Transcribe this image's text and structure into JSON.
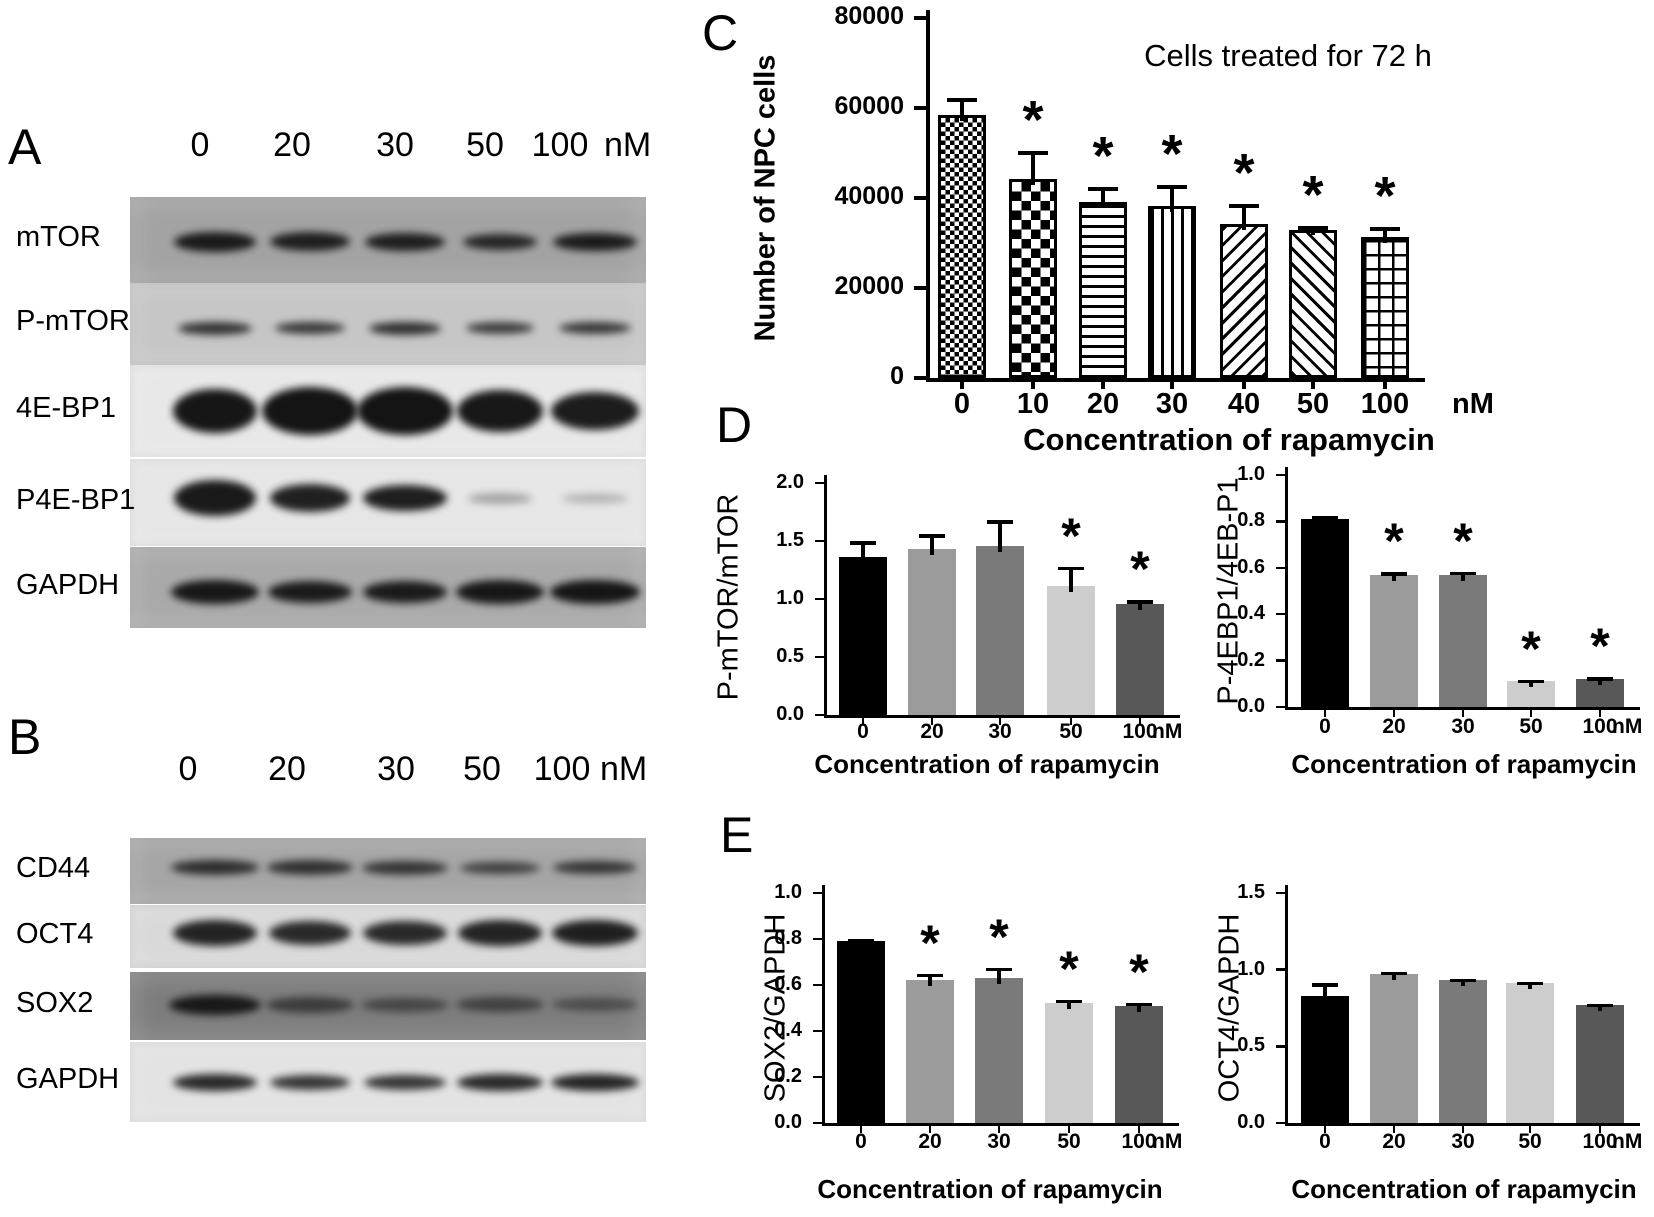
{
  "panels": {
    "A": {
      "label": "A",
      "lane_headers": [
        "0",
        "20",
        "30",
        "50",
        "100"
      ],
      "unit": "nM",
      "rows": [
        {
          "label": "mTOR",
          "strip_color": "#a3a3a3",
          "bands": [
            [
              82,
              20,
              0.93
            ],
            [
              80,
              19,
              0.9
            ],
            [
              80,
              18,
              0.9
            ],
            [
              74,
              16,
              0.85
            ],
            [
              84,
              18,
              0.92
            ]
          ]
        },
        {
          "label": "P-mTOR",
          "strip_color": "#c6c6c6",
          "bands": [
            [
              74,
              13,
              0.8
            ],
            [
              70,
              12,
              0.78
            ],
            [
              72,
              13,
              0.82
            ],
            [
              68,
              12,
              0.75
            ],
            [
              72,
              12,
              0.78
            ]
          ]
        },
        {
          "label": "4E-BP1",
          "strip_color": "#e8e8e8",
          "bands": [
            [
              84,
              44,
              0.97
            ],
            [
              96,
              48,
              0.98
            ],
            [
              96,
              48,
              0.98
            ],
            [
              86,
              42,
              0.96
            ],
            [
              88,
              38,
              0.94
            ]
          ]
        },
        {
          "label": "P4E-BP1",
          "strip_color": "#e6e6e6",
          "bands": [
            [
              82,
              36,
              0.95
            ],
            [
              80,
              28,
              0.92
            ],
            [
              84,
              26,
              0.93
            ],
            [
              64,
              11,
              0.3
            ],
            [
              66,
              9,
              0.25
            ]
          ]
        },
        {
          "label": "GAPDH",
          "strip_color": "#a9a9a9",
          "bands": [
            [
              88,
              24,
              0.95
            ],
            [
              84,
              22,
              0.93
            ],
            [
              84,
              22,
              0.93
            ],
            [
              88,
              24,
              0.95
            ],
            [
              90,
              24,
              0.96
            ]
          ]
        }
      ]
    },
    "B": {
      "label": "B",
      "lane_headers": [
        "0",
        "20",
        "30",
        "50",
        "100"
      ],
      "unit": "nM",
      "rows": [
        {
          "label": "CD44",
          "strip_color": "#a5a5a5",
          "bands": [
            [
              88,
              15,
              0.8
            ],
            [
              86,
              15,
              0.78
            ],
            [
              86,
              14,
              0.75
            ],
            [
              80,
              12,
              0.68
            ],
            [
              84,
              13,
              0.75
            ]
          ]
        },
        {
          "label": "OCT4",
          "strip_color": "#d9d9d9",
          "bands": [
            [
              84,
              26,
              0.9
            ],
            [
              82,
              24,
              0.87
            ],
            [
              84,
              24,
              0.87
            ],
            [
              84,
              26,
              0.9
            ],
            [
              86,
              26,
              0.92
            ]
          ]
        },
        {
          "label": "SOX2",
          "strip_color": "#7d7d7d",
          "bands": [
            [
              92,
              20,
              0.92
            ],
            [
              88,
              16,
              0.6
            ],
            [
              88,
              14,
              0.5
            ],
            [
              88,
              15,
              0.55
            ],
            [
              86,
              13,
              0.45
            ]
          ]
        },
        {
          "label": "GAPDH",
          "strip_color": "#e3e3e3",
          "bands": [
            [
              84,
              17,
              0.88
            ],
            [
              80,
              15,
              0.82
            ],
            [
              82,
              15,
              0.82
            ],
            [
              86,
              17,
              0.88
            ],
            [
              88,
              17,
              0.9
            ]
          ]
        }
      ]
    },
    "C": {
      "label": "C"
    },
    "D": {
      "label": "D"
    },
    "E": {
      "label": "E"
    }
  },
  "chart_data": [
    {
      "id": "C",
      "type": "bar",
      "title": "Cells treated for 72 h",
      "ylabel": "Number of NPC cells",
      "xlabel": "Concentration of rapamycin",
      "unit": "nM",
      "categories": [
        "0",
        "10",
        "20",
        "30",
        "40",
        "50",
        "100"
      ],
      "values": [
        58500,
        44300,
        39200,
        38300,
        34300,
        33000,
        31300
      ],
      "errors": [
        3800,
        6200,
        3200,
        4700,
        4300,
        700,
        2300
      ],
      "sig": [
        "",
        "*",
        "*",
        "*",
        "*",
        "*",
        "*"
      ],
      "ylim": [
        0,
        80000
      ],
      "yticks": [
        [
          0,
          "0"
        ],
        [
          20000,
          "20000"
        ],
        [
          40000,
          "40000"
        ],
        [
          60000,
          "60000"
        ],
        [
          80000,
          "80000"
        ]
      ],
      "patterns": [
        "checker-fine",
        "checker-coarse",
        "hlines",
        "vlines",
        "diag-up",
        "diag-down",
        "grid"
      ],
      "legend": "none"
    },
    {
      "id": "D1",
      "type": "bar",
      "ylabel": "P-mTOR/mTOR",
      "xlabel": "Concentration of rapamycin",
      "unit": "nM",
      "categories": [
        "0",
        "20",
        "30",
        "50",
        "100"
      ],
      "values": [
        1.36,
        1.43,
        1.46,
        1.11,
        0.96
      ],
      "errors": [
        0.14,
        0.13,
        0.22,
        0.17,
        0.03
      ],
      "sig": [
        "",
        "",
        "",
        "*",
        "*"
      ],
      "ylim": [
        0,
        2.0
      ],
      "yticks": [
        [
          0,
          "0.0"
        ],
        [
          0.5,
          "0.5"
        ],
        [
          1.0,
          "1.0"
        ],
        [
          1.5,
          "1.5"
        ],
        [
          2.0,
          "2.0"
        ]
      ],
      "colors": [
        "#000000",
        "#9b9b9b",
        "#7a7a7a",
        "#cdcdcd",
        "#585858"
      ]
    },
    {
      "id": "D2",
      "type": "bar",
      "ylabel": "P-4EBP1/4EB-P1",
      "xlabel": "Concentration of rapamycin",
      "unit": "nM",
      "categories": [
        "0",
        "20",
        "30",
        "50",
        "100"
      ],
      "values": [
        0.81,
        0.57,
        0.57,
        0.11,
        0.12
      ],
      "errors": [
        0.015,
        0.01,
        0.012,
        0.008,
        0.008
      ],
      "sig": [
        "",
        "*",
        "*",
        "*",
        "*"
      ],
      "ylim": [
        0,
        1.0
      ],
      "yticks": [
        [
          0,
          "0.0"
        ],
        [
          0.2,
          "0.2"
        ],
        [
          0.4,
          "0.4"
        ],
        [
          0.6,
          "0.6"
        ],
        [
          0.8,
          "0.8"
        ],
        [
          1.0,
          "1.0"
        ]
      ],
      "colors": [
        "#000000",
        "#9b9b9b",
        "#7a7a7a",
        "#cdcdcd",
        "#585858"
      ]
    },
    {
      "id": "E1",
      "type": "bar",
      "ylabel": "SOX2/GAPDH",
      "xlabel": "Concentration of rapamycin",
      "unit": "nM",
      "categories": [
        "0",
        "20",
        "30",
        "50",
        "100"
      ],
      "values": [
        0.79,
        0.62,
        0.63,
        0.52,
        0.51
      ],
      "errors": [
        0.012,
        0.028,
        0.045,
        0.015,
        0.012
      ],
      "sig": [
        "",
        "*",
        "*",
        "*",
        "*"
      ],
      "ylim": [
        0,
        1.0
      ],
      "yticks": [
        [
          0,
          "0.0"
        ],
        [
          0.2,
          "0.2"
        ],
        [
          0.4,
          "0.4"
        ],
        [
          0.6,
          "0.6"
        ],
        [
          0.8,
          "0.8"
        ],
        [
          1.0,
          "1.0"
        ]
      ],
      "colors": [
        "#000000",
        "#9b9b9b",
        "#7a7a7a",
        "#cdcdcd",
        "#585858"
      ]
    },
    {
      "id": "E2",
      "type": "bar",
      "ylabel": "OCT4/GAPDH",
      "xlabel": "Concentration of rapamycin",
      "unit": "nM",
      "categories": [
        "0",
        "20",
        "30",
        "50",
        "100"
      ],
      "values": [
        0.83,
        0.97,
        0.93,
        0.91,
        0.77
      ],
      "errors": [
        0.08,
        0.015,
        0.012,
        0.012,
        0.008
      ],
      "sig": [
        "",
        "",
        "",
        "",
        ""
      ],
      "ylim": [
        0,
        1.5
      ],
      "yticks": [
        [
          0,
          "0.0"
        ],
        [
          0.5,
          "0.5"
        ],
        [
          1.0,
          "1.0"
        ],
        [
          1.5,
          "1.5"
        ]
      ],
      "colors": [
        "#000000",
        "#9b9b9b",
        "#7a7a7a",
        "#cdcdcd",
        "#585858"
      ]
    }
  ]
}
